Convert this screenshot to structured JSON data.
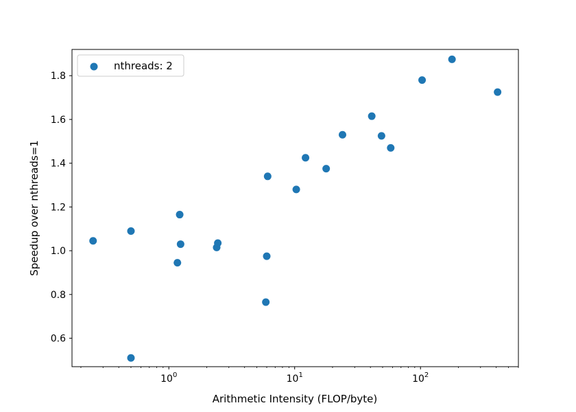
{
  "chart_data": {
    "type": "scatter",
    "title": "",
    "xlabel": "Arithmetic Intensity (FLOP/byte)",
    "ylabel": "Speedup over nthreads=1",
    "xscale": "log",
    "xlim": [
      0.17,
      600
    ],
    "ylim": [
      0.47,
      1.92
    ],
    "x_ticks": [
      {
        "value": 1,
        "base": "10",
        "exp": "0"
      },
      {
        "value": 10,
        "base": "10",
        "exp": "1"
      },
      {
        "value": 100,
        "base": "10",
        "exp": "2"
      }
    ],
    "y_ticks": [
      {
        "value": 0.6,
        "label": "0.6"
      },
      {
        "value": 0.8,
        "label": "0.8"
      },
      {
        "value": 1.0,
        "label": "1.0"
      },
      {
        "value": 1.2,
        "label": "1.2"
      },
      {
        "value": 1.4,
        "label": "1.4"
      },
      {
        "value": 1.6,
        "label": "1.6"
      },
      {
        "value": 1.8,
        "label": "1.8"
      }
    ],
    "legend": {
      "position": "top-left",
      "entries": [
        "nthreads: 2"
      ]
    },
    "grid": false,
    "series": [
      {
        "name": "nthreads: 2",
        "color": "#1f77b4",
        "points": [
          {
            "x": 0.25,
            "y": 1.045
          },
          {
            "x": 0.5,
            "y": 1.09
          },
          {
            "x": 0.5,
            "y": 0.51
          },
          {
            "x": 1.17,
            "y": 0.945
          },
          {
            "x": 1.22,
            "y": 1.165
          },
          {
            "x": 1.24,
            "y": 1.03
          },
          {
            "x": 2.4,
            "y": 1.015
          },
          {
            "x": 2.45,
            "y": 1.035
          },
          {
            "x": 5.9,
            "y": 0.765
          },
          {
            "x": 6.0,
            "y": 0.975
          },
          {
            "x": 6.1,
            "y": 1.34
          },
          {
            "x": 10.3,
            "y": 1.28
          },
          {
            "x": 12.2,
            "y": 1.425
          },
          {
            "x": 17.8,
            "y": 1.375
          },
          {
            "x": 24.0,
            "y": 1.53
          },
          {
            "x": 41.0,
            "y": 1.615
          },
          {
            "x": 49.0,
            "y": 1.525
          },
          {
            "x": 58.0,
            "y": 1.47
          },
          {
            "x": 103.0,
            "y": 1.78
          },
          {
            "x": 178.0,
            "y": 1.875
          },
          {
            "x": 410.0,
            "y": 1.725
          }
        ]
      }
    ]
  }
}
